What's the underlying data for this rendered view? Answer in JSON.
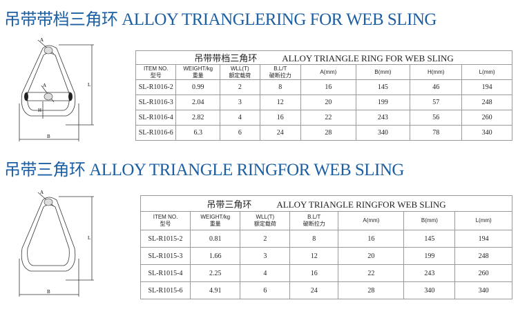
{
  "section1": {
    "heading_cn": "吊带带档三角环",
    "heading_en": "ALLOY TRIANGLERING FOR WEB SLING",
    "table": {
      "title_cn": "吊带带档三角环",
      "title_en": "ALLOY TRIANGLE RING FOR WEB SLING",
      "headers": [
        [
          "ITEM NO.",
          "型号"
        ],
        [
          "WEIGHT/kg",
          "重量"
        ],
        [
          "WLL(T)",
          "额定载荷"
        ],
        [
          "B.L/T",
          "破断拉力"
        ],
        [
          "A(mm)",
          ""
        ],
        [
          "B(mm)",
          ""
        ],
        [
          "H(mm)",
          ""
        ],
        [
          "L(mm)",
          ""
        ]
      ],
      "rows": [
        [
          "SL-R1016-2",
          "0.99",
          "2",
          "8",
          "16",
          "145",
          "46",
          "194"
        ],
        [
          "SL-R1016-3",
          "2.04",
          "3",
          "12",
          "20",
          "199",
          "57",
          "248"
        ],
        [
          "SL-R1016-4",
          "2.82",
          "4",
          "16",
          "22",
          "243",
          "56",
          "260"
        ],
        [
          "SL-R1016-6",
          "6.3",
          "6",
          "24",
          "28",
          "340",
          "78",
          "340"
        ]
      ]
    },
    "diagram_labels": {
      "a1": "A",
      "a2": "A",
      "h": "H",
      "l": "L",
      "b": "B"
    }
  },
  "section2": {
    "heading_cn": "吊带三角环",
    "heading_en": "ALLOY TRIANGLE RINGFOR WEB SLING",
    "table": {
      "title_cn": "吊带三角环",
      "title_en": "ALLOY TRIANGLE RINGFOR WEB SLING",
      "headers": [
        [
          "ITEM NO.",
          "型号"
        ],
        [
          "WEIGHT/kg",
          "重量"
        ],
        [
          "WLL(T)",
          "额定载荷"
        ],
        [
          "B.L/T",
          "破断拉力"
        ],
        [
          "A(mm)",
          ""
        ],
        [
          "B(mm)",
          ""
        ],
        [
          "L(mm)",
          ""
        ]
      ],
      "rows": [
        [
          "SL-R1015-2",
          "0.81",
          "2",
          "8",
          "16",
          "145",
          "194"
        ],
        [
          "SL-R1015-3",
          "1.66",
          "3",
          "12",
          "20",
          "199",
          "248"
        ],
        [
          "SL-R1015-4",
          "2.25",
          "4",
          "16",
          "22",
          "243",
          "260"
        ],
        [
          "SL-R1015-6",
          "4.91",
          "6",
          "24",
          "28",
          "340",
          "340"
        ]
      ]
    },
    "diagram_labels": {
      "a": "A",
      "l": "L",
      "b": "B"
    }
  },
  "colors": {
    "heading": "#1c5fa3",
    "border": "#999999"
  }
}
